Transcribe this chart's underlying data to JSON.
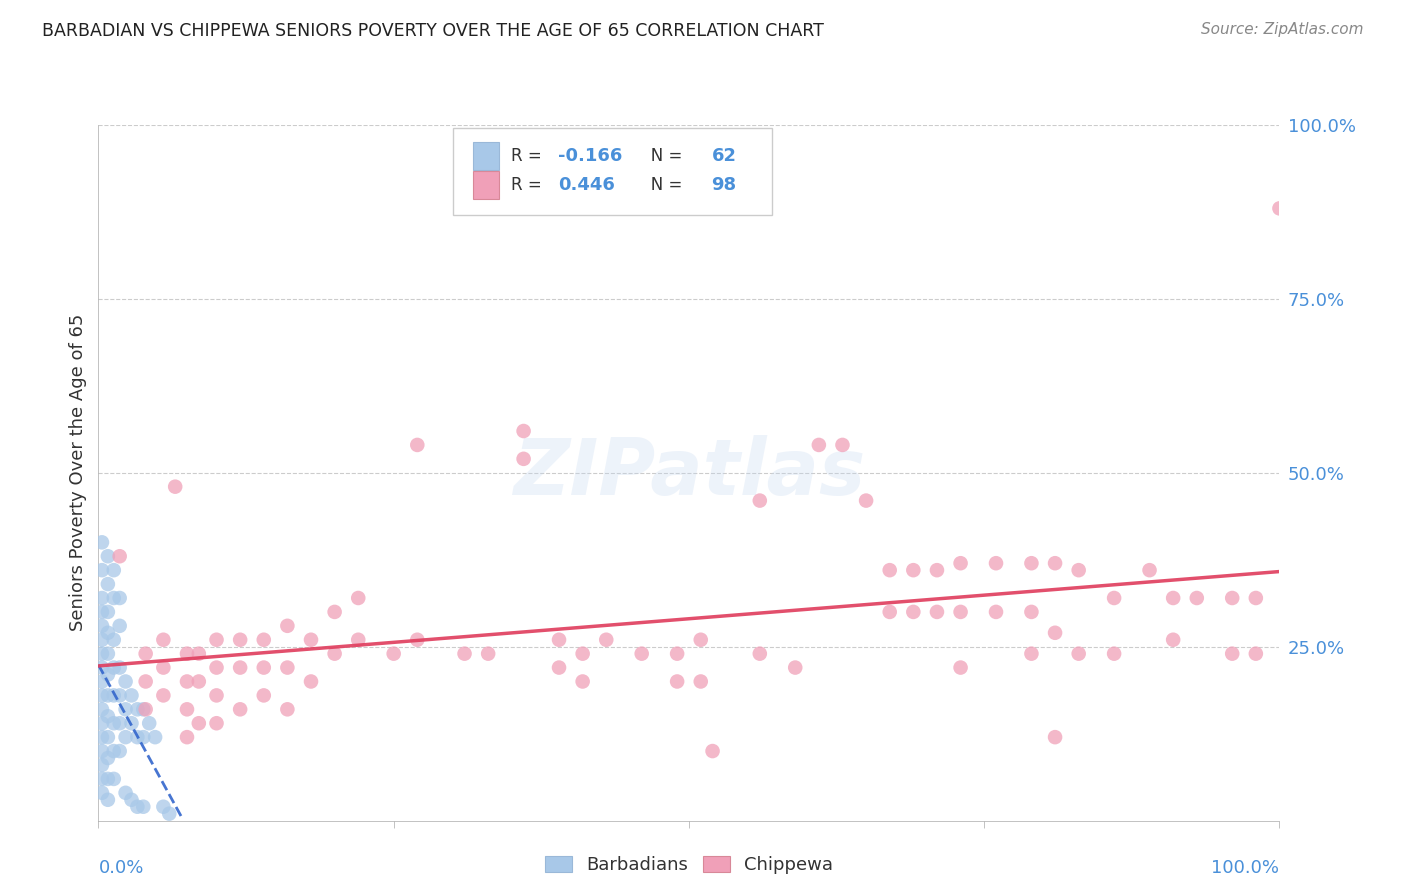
{
  "title": "BARBADIAN VS CHIPPEWA SENIORS POVERTY OVER THE AGE OF 65 CORRELATION CHART",
  "source": "Source: ZipAtlas.com",
  "ylabel": "Seniors Poverty Over the Age of 65",
  "barbadian_color": "#a8c8e8",
  "chippewa_color": "#f0a0b8",
  "barbadian_line_color": "#3366cc",
  "chippewa_line_color": "#e04060",
  "barbadian_R": -0.166,
  "barbadian_N": 62,
  "chippewa_R": 0.446,
  "chippewa_N": 98,
  "watermark": "ZIPatlas",
  "background_color": "#ffffff",
  "grid_color": "#cccccc",
  "title_color": "#222222",
  "axis_label_color": "#4a90d9",
  "barbadian_points": [
    [
      0.003,
      0.32
    ],
    [
      0.003,
      0.3
    ],
    [
      0.003,
      0.28
    ],
    [
      0.003,
      0.26
    ],
    [
      0.003,
      0.24
    ],
    [
      0.003,
      0.22
    ],
    [
      0.003,
      0.2
    ],
    [
      0.003,
      0.18
    ],
    [
      0.003,
      0.16
    ],
    [
      0.003,
      0.14
    ],
    [
      0.003,
      0.12
    ],
    [
      0.003,
      0.1
    ],
    [
      0.003,
      0.08
    ],
    [
      0.003,
      0.06
    ],
    [
      0.003,
      0.04
    ],
    [
      0.008,
      0.3
    ],
    [
      0.008,
      0.27
    ],
    [
      0.008,
      0.24
    ],
    [
      0.008,
      0.21
    ],
    [
      0.008,
      0.18
    ],
    [
      0.008,
      0.15
    ],
    [
      0.008,
      0.12
    ],
    [
      0.008,
      0.09
    ],
    [
      0.008,
      0.06
    ],
    [
      0.008,
      0.03
    ],
    [
      0.013,
      0.26
    ],
    [
      0.013,
      0.22
    ],
    [
      0.013,
      0.18
    ],
    [
      0.013,
      0.14
    ],
    [
      0.013,
      0.1
    ],
    [
      0.013,
      0.06
    ],
    [
      0.018,
      0.22
    ],
    [
      0.018,
      0.18
    ],
    [
      0.018,
      0.14
    ],
    [
      0.018,
      0.1
    ],
    [
      0.023,
      0.2
    ],
    [
      0.023,
      0.16
    ],
    [
      0.023,
      0.12
    ],
    [
      0.028,
      0.18
    ],
    [
      0.028,
      0.14
    ],
    [
      0.033,
      0.16
    ],
    [
      0.033,
      0.12
    ],
    [
      0.038,
      0.16
    ],
    [
      0.038,
      0.12
    ],
    [
      0.043,
      0.14
    ],
    [
      0.048,
      0.12
    ],
    [
      0.003,
      0.36
    ],
    [
      0.003,
      0.4
    ],
    [
      0.008,
      0.34
    ],
    [
      0.008,
      0.38
    ],
    [
      0.013,
      0.32
    ],
    [
      0.013,
      0.36
    ],
    [
      0.018,
      0.28
    ],
    [
      0.018,
      0.32
    ],
    [
      0.023,
      0.04
    ],
    [
      0.028,
      0.03
    ],
    [
      0.033,
      0.02
    ],
    [
      0.038,
      0.02
    ],
    [
      0.055,
      0.02
    ],
    [
      0.06,
      0.01
    ]
  ],
  "chippewa_points": [
    [
      0.018,
      0.38
    ],
    [
      0.04,
      0.24
    ],
    [
      0.04,
      0.2
    ],
    [
      0.04,
      0.16
    ],
    [
      0.055,
      0.26
    ],
    [
      0.055,
      0.22
    ],
    [
      0.055,
      0.18
    ],
    [
      0.065,
      0.48
    ],
    [
      0.075,
      0.24
    ],
    [
      0.075,
      0.2
    ],
    [
      0.075,
      0.16
    ],
    [
      0.075,
      0.12
    ],
    [
      0.085,
      0.24
    ],
    [
      0.085,
      0.2
    ],
    [
      0.085,
      0.14
    ],
    [
      0.1,
      0.26
    ],
    [
      0.1,
      0.22
    ],
    [
      0.1,
      0.18
    ],
    [
      0.1,
      0.14
    ],
    [
      0.12,
      0.26
    ],
    [
      0.12,
      0.22
    ],
    [
      0.12,
      0.16
    ],
    [
      0.14,
      0.26
    ],
    [
      0.14,
      0.22
    ],
    [
      0.14,
      0.18
    ],
    [
      0.16,
      0.28
    ],
    [
      0.16,
      0.22
    ],
    [
      0.16,
      0.16
    ],
    [
      0.18,
      0.26
    ],
    [
      0.18,
      0.2
    ],
    [
      0.2,
      0.3
    ],
    [
      0.2,
      0.24
    ],
    [
      0.22,
      0.32
    ],
    [
      0.22,
      0.26
    ],
    [
      0.25,
      0.24
    ],
    [
      0.27,
      0.54
    ],
    [
      0.27,
      0.26
    ],
    [
      0.31,
      0.24
    ],
    [
      0.33,
      0.24
    ],
    [
      0.36,
      0.56
    ],
    [
      0.36,
      0.52
    ],
    [
      0.39,
      0.26
    ],
    [
      0.39,
      0.22
    ],
    [
      0.41,
      0.24
    ],
    [
      0.41,
      0.2
    ],
    [
      0.43,
      0.26
    ],
    [
      0.46,
      0.24
    ],
    [
      0.49,
      0.24
    ],
    [
      0.49,
      0.2
    ],
    [
      0.51,
      0.26
    ],
    [
      0.51,
      0.2
    ],
    [
      0.52,
      0.1
    ],
    [
      0.56,
      0.46
    ],
    [
      0.56,
      0.24
    ],
    [
      0.59,
      0.22
    ],
    [
      0.61,
      0.54
    ],
    [
      0.63,
      0.54
    ],
    [
      0.65,
      0.46
    ],
    [
      0.67,
      0.36
    ],
    [
      0.67,
      0.3
    ],
    [
      0.69,
      0.36
    ],
    [
      0.69,
      0.3
    ],
    [
      0.71,
      0.36
    ],
    [
      0.71,
      0.3
    ],
    [
      0.73,
      0.37
    ],
    [
      0.73,
      0.3
    ],
    [
      0.73,
      0.22
    ],
    [
      0.76,
      0.37
    ],
    [
      0.76,
      0.3
    ],
    [
      0.79,
      0.37
    ],
    [
      0.79,
      0.3
    ],
    [
      0.79,
      0.24
    ],
    [
      0.81,
      0.37
    ],
    [
      0.81,
      0.27
    ],
    [
      0.81,
      0.12
    ],
    [
      0.83,
      0.36
    ],
    [
      0.83,
      0.24
    ],
    [
      0.86,
      0.32
    ],
    [
      0.86,
      0.24
    ],
    [
      0.89,
      0.36
    ],
    [
      0.91,
      0.32
    ],
    [
      0.91,
      0.26
    ],
    [
      0.93,
      0.32
    ],
    [
      0.96,
      0.32
    ],
    [
      0.96,
      0.24
    ],
    [
      0.98,
      0.32
    ],
    [
      0.98,
      0.24
    ],
    [
      1.0,
      0.88
    ]
  ]
}
